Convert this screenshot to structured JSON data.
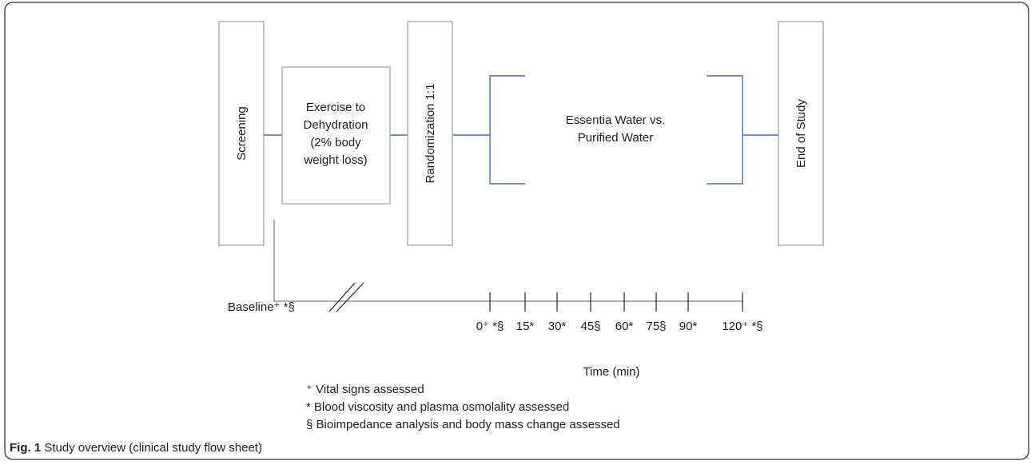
{
  "boxes": [
    "Screening",
    "Randomization  1:1",
    "End of Study"
  ],
  "exercise": [
    "Exercise to",
    "Dehydration",
    "(2% body",
    "weight loss)"
  ],
  "intervention": [
    "Essentia Water vs.",
    "Purified Water"
  ],
  "baseline": "Baseline⁺ *§",
  "timepoints": [
    "0⁺ *§",
    "15*",
    "30*",
    "45§",
    "60*",
    "75§",
    "90*",
    "120⁺ *§"
  ],
  "time_label": "Time (min)",
  "legend": [
    "⁺ Vital signs assessed",
    "* Blood viscosity and plasma osmolality assessed",
    "§ Bioimpedance analysis and body mass change assessed"
  ],
  "caption": {
    "label": "Fig. 1",
    "text": "Study overview (clinical study flow sheet)"
  }
}
